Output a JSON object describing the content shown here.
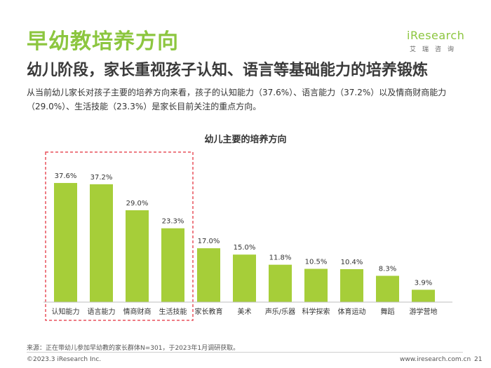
{
  "header": {
    "title": "早幼教培养方向",
    "subtitle": "幼儿阶段，家长重视孩子认知、语言等基础能力的培养锻炼",
    "summary": "从当前幼儿家长对孩子主要的培养方向来看，孩子的认知能力（37.6%）、语言能力（37.2%）以及情商财商能力（29.0%）、生活技能（23.3%）是家长目前关注的重点方向。"
  },
  "logo": {
    "word": "iResearch",
    "sub": "艾瑞咨询"
  },
  "colors": {
    "accent": "#8cc63f",
    "bar": "#a6ce39",
    "highlight_border": "#e8505b"
  },
  "chart_data": {
    "type": "bar",
    "title": "幼儿主要的培养方向",
    "categories": [
      "认知能力",
      "语言能力",
      "情商财商",
      "生活技能",
      "家长教育",
      "美术",
      "声乐/乐器",
      "科学探索",
      "体育运动",
      "舞蹈",
      "游学营地"
    ],
    "values": [
      37.6,
      37.2,
      29.0,
      23.3,
      17.0,
      15.0,
      11.8,
      10.5,
      10.4,
      8.3,
      3.9
    ],
    "value_labels": [
      "37.6%",
      "37.2%",
      "29.0%",
      "23.3%",
      "17.0%",
      "15.0%",
      "11.8%",
      "10.5%",
      "10.4%",
      "8.3%",
      "3.9%"
    ],
    "unit": "%",
    "ylim": [
      0,
      40
    ],
    "grid": false,
    "highlighted_categories": [
      0,
      1,
      2,
      3
    ]
  },
  "footer": {
    "source": "来源：正在带幼儿参加早幼教的家长群体N=301，于2023年1月调研获取。",
    "copyright": "©2023.3 iResearch Inc.",
    "website": "www.iresearch.com.cn",
    "page_number": "21"
  }
}
